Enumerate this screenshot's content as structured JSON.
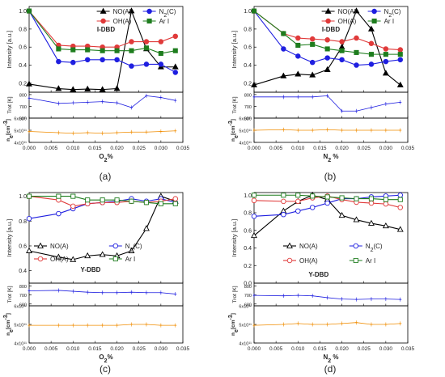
{
  "figure": {
    "panel_labels": [
      "(a)",
      "(b)",
      "(c)",
      "(d)"
    ]
  },
  "chart_data": [
    {
      "type": "line",
      "panel": "(a)",
      "plasma_label": "I-DBD",
      "xlabel": "O",
      "xlabel_sub": "2",
      "xlabel_suffix": "%",
      "xlim": [
        0,
        0.035
      ],
      "xticks": [
        "0.000",
        "0.005",
        "0.010",
        "0.015",
        "0.020",
        "0.025",
        "0.030",
        "0.035"
      ],
      "intensity": {
        "ylabel": "Intensity [a.u.]",
        "ylim": [
          0.1,
          1.05
        ],
        "yticks": [
          "0.2",
          "0.4",
          "0.6",
          "0.8",
          "1.0"
        ],
        "legend_position": "top-right",
        "series": [
          {
            "name": "NO(A)",
            "marker": "triangle",
            "filled": true,
            "color": "#000000",
            "x": [
              0,
              0.0067,
              0.01,
              0.0133,
              0.0167,
              0.02,
              0.0233,
              0.0267,
              0.03,
              0.0333
            ],
            "values": [
              0.19,
              0.14,
              0.13,
              0.135,
              0.13,
              0.14,
              1.0,
              0.58,
              0.38,
              0.38
            ]
          },
          {
            "name": "N2(C)",
            "marker": "circle",
            "filled": true,
            "color": "#1f1fe0",
            "x": [
              0,
              0.0067,
              0.01,
              0.0133,
              0.0167,
              0.02,
              0.0233,
              0.0267,
              0.03,
              0.0333
            ],
            "values": [
              1.0,
              0.44,
              0.43,
              0.46,
              0.46,
              0.46,
              0.39,
              0.41,
              0.41,
              0.32
            ]
          },
          {
            "name": "OH(A)",
            "marker": "circle",
            "filled": true,
            "color": "#e03a3a",
            "x": [
              0,
              0.0067,
              0.01,
              0.0133,
              0.0167,
              0.02,
              0.0233,
              0.0267,
              0.03,
              0.0333
            ],
            "values": [
              1.0,
              0.62,
              0.61,
              0.61,
              0.6,
              0.6,
              0.66,
              0.66,
              0.66,
              0.72
            ]
          },
          {
            "name": "Ar I",
            "marker": "square",
            "filled": true,
            "color": "#1e7d1e",
            "x": [
              0,
              0.0067,
              0.01,
              0.0133,
              0.0167,
              0.02,
              0.0233,
              0.0267,
              0.03,
              0.0333
            ],
            "values": [
              1.0,
              0.58,
              0.57,
              0.57,
              0.56,
              0.56,
              0.56,
              0.59,
              0.53,
              0.56
            ]
          }
        ]
      },
      "trot": {
        "ylabel": "Trot [K]",
        "ylim": [
          600,
          820
        ],
        "yticks": [
          "600",
          "700",
          "800"
        ],
        "color": "#1f1fe0",
        "x": [
          0,
          0.0067,
          0.01,
          0.0133,
          0.0167,
          0.02,
          0.0233,
          0.0267,
          0.03,
          0.0333
        ],
        "values": [
          770,
          725,
          730,
          735,
          740,
          730,
          690,
          790,
          775,
          750
        ]
      },
      "ne": {
        "ylabel": "n",
        "ylabel_sub": "e",
        "ylabel_suffix": "[cm",
        "ylabel_sup": "-3",
        "ylabel_end": "]",
        "yticks": [
          "4x10¹¹",
          "5x10¹¹",
          "6x10¹¹"
        ],
        "ylim": [
          4,
          6
        ],
        "color": "#f08c00",
        "x": [
          0,
          0.0067,
          0.01,
          0.0133,
          0.0167,
          0.02,
          0.0233,
          0.0267,
          0.03,
          0.0333
        ],
        "values": [
          4.9,
          4.8,
          4.75,
          4.8,
          4.75,
          4.8,
          4.85,
          4.85,
          4.9,
          4.95
        ]
      }
    },
    {
      "type": "line",
      "panel": "(b)",
      "plasma_label": "I-DBD",
      "xlabel": "N",
      "xlabel_sub": "2",
      "xlabel_suffix": " %",
      "xlim": [
        0,
        0.035
      ],
      "xticks": [
        "0.000",
        "0.005",
        "0.010",
        "0.015",
        "0.020",
        "0.025",
        "0.030",
        "0.035"
      ],
      "intensity": {
        "ylabel": "Intensity [a.u.]",
        "ylim": [
          0.1,
          1.05
        ],
        "yticks": [
          "0.2",
          "0.4",
          "0.6",
          "0.8",
          "1.0"
        ],
        "legend_position": "top-right",
        "series": [
          {
            "name": "NO(A)",
            "marker": "triangle",
            "filled": true,
            "color": "#000000",
            "x": [
              0,
              0.0067,
              0.01,
              0.0133,
              0.0167,
              0.02,
              0.0233,
              0.0267,
              0.03,
              0.0333
            ],
            "values": [
              0.18,
              0.28,
              0.3,
              0.29,
              0.35,
              0.6,
              1.0,
              0.8,
              0.31,
              0.18
            ]
          },
          {
            "name": "N2(C)",
            "marker": "circle",
            "filled": true,
            "color": "#1f1fe0",
            "x": [
              0,
              0.0067,
              0.01,
              0.0133,
              0.0167,
              0.02,
              0.0233,
              0.0267,
              0.03,
              0.0333
            ],
            "values": [
              1.0,
              0.58,
              0.5,
              0.43,
              0.48,
              0.46,
              0.4,
              0.41,
              0.44,
              0.46
            ]
          },
          {
            "name": "OH(A)",
            "marker": "circle",
            "filled": true,
            "color": "#e03a3a",
            "x": [
              0,
              0.0067,
              0.01,
              0.0133,
              0.0167,
              0.02,
              0.0233,
              0.0267,
              0.03,
              0.0333
            ],
            "values": [
              1.0,
              0.75,
              0.7,
              0.69,
              0.68,
              0.66,
              0.7,
              0.64,
              0.58,
              0.57
            ]
          },
          {
            "name": "Ar I",
            "marker": "square",
            "filled": true,
            "color": "#1e7d1e",
            "x": [
              0,
              0.0067,
              0.01,
              0.0133,
              0.0167,
              0.02,
              0.0233,
              0.0267,
              0.03,
              0.0333
            ],
            "values": [
              1.0,
              0.75,
              0.62,
              0.63,
              0.58,
              0.56,
              0.54,
              0.52,
              0.52,
              0.52
            ]
          }
        ]
      },
      "trot": {
        "ylabel": "Trot [K]",
        "ylim": [
          600,
          820
        ],
        "yticks": [
          "600",
          "700",
          "800"
        ],
        "color": "#1f1fe0",
        "x": [
          0,
          0.0067,
          0.01,
          0.0133,
          0.0167,
          0.02,
          0.0233,
          0.0267,
          0.03,
          0.0333
        ],
        "values": [
          780,
          780,
          780,
          780,
          790,
          660,
          660,
          690,
          720,
          735
        ]
      },
      "ne": {
        "ylabel": "n",
        "ylabel_sub": "e",
        "ylabel_suffix": "[cm",
        "ylabel_sup": "-3",
        "ylabel_end": "]",
        "yticks": [
          "4x10¹¹",
          "5x10¹¹",
          "6x10¹¹"
        ],
        "ylim": [
          4,
          6
        ],
        "color": "#f08c00",
        "x": [
          0,
          0.0067,
          0.01,
          0.0133,
          0.0167,
          0.02,
          0.0233,
          0.0267,
          0.03,
          0.0333
        ],
        "values": [
          5.0,
          5.05,
          5.0,
          5.0,
          5.05,
          5.0,
          5.0,
          5.0,
          5.0,
          5.0
        ]
      }
    },
    {
      "type": "line",
      "panel": "(c)",
      "plasma_label": "Y-DBD",
      "xlabel": "O",
      "xlabel_sub": "2",
      "xlabel_suffix": "%",
      "xlim": [
        0,
        0.035
      ],
      "xticks": [
        "0.000",
        "0.005",
        "0.010",
        "0.015",
        "0.020",
        "0.025",
        "0.030",
        "0.035"
      ],
      "intensity": {
        "ylabel": "Intensity [a.u.]",
        "ylim": [
          0.3,
          1.03
        ],
        "yticks": [
          "0.4",
          "0.6",
          "0.8",
          "1.0"
        ],
        "legend_position": "bottom-center",
        "series": [
          {
            "name": "NO(A)",
            "marker": "triangle",
            "filled": false,
            "color": "#000000",
            "x": [
              0,
              0.0067,
              0.01,
              0.0133,
              0.0167,
              0.02,
              0.0233,
              0.0267,
              0.03,
              0.0333
            ],
            "values": [
              0.56,
              0.51,
              0.49,
              0.52,
              0.53,
              0.52,
              0.56,
              0.74,
              1.0,
              0.96
            ]
          },
          {
            "name": "N2(C)",
            "marker": "circle",
            "filled": false,
            "color": "#1f1fe0",
            "x": [
              0,
              0.0067,
              0.01,
              0.0133,
              0.0167,
              0.02,
              0.0233,
              0.0267,
              0.03,
              0.0333
            ],
            "values": [
              0.82,
              0.86,
              0.9,
              0.94,
              0.95,
              0.96,
              0.98,
              0.96,
              0.98,
              0.95
            ]
          },
          {
            "name": "OH(A)",
            "marker": "circle",
            "filled": false,
            "color": "#e03a3a",
            "x": [
              0,
              0.0067,
              0.01,
              0.0133,
              0.0167,
              0.02,
              0.0233,
              0.0267,
              0.03,
              0.0333
            ],
            "values": [
              1.0,
              0.97,
              0.92,
              0.94,
              0.95,
              0.95,
              0.96,
              0.95,
              0.96,
              0.98
            ]
          },
          {
            "name": "Ar I",
            "marker": "square",
            "filled": false,
            "color": "#1e7d1e",
            "x": [
              0,
              0.0067,
              0.01,
              0.0133,
              0.0167,
              0.02,
              0.0233,
              0.0267,
              0.03,
              0.0333
            ],
            "values": [
              1.0,
              1.0,
              1.0,
              0.97,
              0.97,
              0.97,
              0.96,
              0.95,
              0.94,
              0.94
            ]
          }
        ]
      },
      "trot": {
        "ylabel": "Trot [K]",
        "ylim": [
          580,
          830
        ],
        "yticks": [
          "600",
          "700",
          "800"
        ],
        "color": "#1f1fe0",
        "x": [
          0,
          0.0067,
          0.01,
          0.0133,
          0.0167,
          0.02,
          0.0233,
          0.0267,
          0.03,
          0.0333
        ],
        "values": [
          745,
          750,
          740,
          730,
          725,
          725,
          730,
          725,
          725,
          710
        ]
      },
      "ne": {
        "ylabel": "n",
        "ylabel_sub": "e",
        "ylabel_suffix": "[cm",
        "ylabel_sup": "-3",
        "ylabel_end": "]",
        "yticks": [
          "4x10¹¹",
          "5x10¹¹",
          "6x10¹¹"
        ],
        "ylim": [
          4,
          6
        ],
        "color": "#f08c00",
        "x": [
          0,
          0.0067,
          0.01,
          0.0133,
          0.0167,
          0.02,
          0.0233,
          0.0267,
          0.03,
          0.0333
        ],
        "values": [
          4.95,
          4.95,
          4.95,
          4.95,
          4.95,
          4.95,
          5.0,
          5.0,
          4.95,
          4.95
        ]
      }
    },
    {
      "type": "line",
      "panel": "(d)",
      "plasma_label": "Y-DBD",
      "xlabel": "N",
      "xlabel_sub": "2",
      "xlabel_suffix": " %",
      "xlim": [
        0,
        0.035
      ],
      "xticks": [
        "0.000",
        "0.005",
        "0.010",
        "0.015",
        "0.020",
        "0.025",
        "0.030",
        "0.035"
      ],
      "intensity": {
        "ylabel": "Intensity [a.u.]",
        "ylim": [
          0.0,
          1.03
        ],
        "yticks": [
          "0.0",
          "0.2",
          "0.4",
          "0.6",
          "0.8",
          "1.0"
        ],
        "legend_position": "bottom-right",
        "series": [
          {
            "name": "NO(A)",
            "marker": "triangle",
            "filled": false,
            "color": "#000000",
            "x": [
              0,
              0.0067,
              0.01,
              0.0133,
              0.0167,
              0.02,
              0.0233,
              0.0267,
              0.03,
              0.0333
            ],
            "values": [
              0.54,
              0.82,
              0.93,
              1.0,
              0.95,
              0.77,
              0.72,
              0.68,
              0.65,
              0.61
            ]
          },
          {
            "name": "N2(C)",
            "marker": "circle",
            "filled": false,
            "color": "#1f1fe0",
            "x": [
              0,
              0.0067,
              0.01,
              0.0133,
              0.0167,
              0.02,
              0.0233,
              0.0267,
              0.03,
              0.0333
            ],
            "values": [
              0.76,
              0.78,
              0.82,
              0.86,
              0.91,
              0.96,
              0.96,
              0.98,
              0.99,
              1.0
            ]
          },
          {
            "name": "OH(A)",
            "marker": "circle",
            "filled": false,
            "color": "#e03a3a",
            "x": [
              0,
              0.0067,
              0.01,
              0.0133,
              0.0167,
              0.02,
              0.0233,
              0.0267,
              0.03,
              0.0333
            ],
            "values": [
              0.94,
              0.93,
              0.93,
              0.97,
              0.99,
              0.95,
              0.92,
              0.91,
              0.9,
              0.86
            ]
          },
          {
            "name": "Ar I",
            "marker": "square",
            "filled": false,
            "color": "#1e7d1e",
            "x": [
              0,
              0.0067,
              0.01,
              0.0133,
              0.0167,
              0.02,
              0.0233,
              0.0267,
              0.03,
              0.0333
            ],
            "values": [
              1.0,
              1.0,
              1.0,
              0.99,
              0.98,
              0.97,
              0.96,
              0.96,
              0.95,
              0.95
            ]
          }
        ]
      },
      "trot": {
        "ylabel": "Trot [K]",
        "ylim": [
          580,
          830
        ],
        "yticks": [
          "600",
          "700",
          "800"
        ],
        "color": "#1f1fe0",
        "x": [
          0,
          0.0067,
          0.01,
          0.0133,
          0.0167,
          0.02,
          0.0233,
          0.0267,
          0.03,
          0.0333
        ],
        "values": [
          695,
          690,
          695,
          690,
          670,
          655,
          650,
          655,
          655,
          650
        ]
      },
      "ne": {
        "ylabel": "n",
        "ylabel_sub": "e",
        "ylabel_suffix": "[cm",
        "ylabel_sup": "-3",
        "ylabel_end": "]",
        "yticks": [
          "4x10¹¹",
          "5x10¹¹",
          "6x10¹¹"
        ],
        "ylim": [
          4,
          6
        ],
        "color": "#f08c00",
        "x": [
          0,
          0.0067,
          0.01,
          0.0133,
          0.0167,
          0.02,
          0.0233,
          0.0267,
          0.03,
          0.0333
        ],
        "values": [
          4.95,
          5.0,
          5.05,
          5.0,
          5.0,
          5.05,
          5.1,
          5.0,
          5.0,
          5.05
        ]
      }
    }
  ]
}
